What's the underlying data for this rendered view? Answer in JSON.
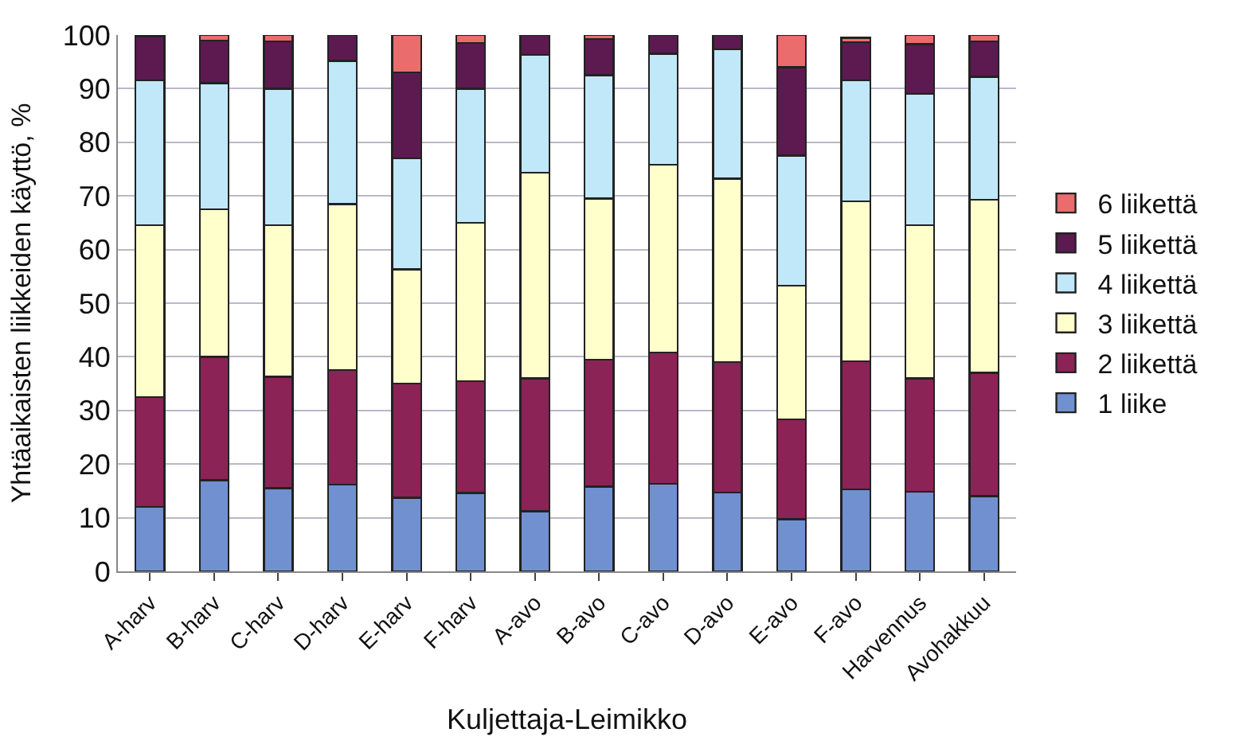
{
  "chart_data": {
    "type": "bar",
    "stacked": true,
    "xlabel": "Kuljettaja-Leimikko",
    "ylabel": "Yhtäaikaisten liikkeiden käyttö, %",
    "categories": [
      "A-harv",
      "B-harv",
      "C-harv",
      "D-harv",
      "E-harv",
      "F-harv",
      "A-avo",
      "B-avo",
      "C-avo",
      "D-avo",
      "E-avo",
      "F-avo",
      "Harvennus",
      "Avohakkuu"
    ],
    "series": [
      {
        "name": "1 liike",
        "color": "#7090d0",
        "values": [
          12,
          17,
          15.5,
          16.2,
          13.7,
          14.6,
          11.2,
          15.8,
          16.3,
          14.7,
          9.7,
          15.3,
          14.8,
          14
        ]
      },
      {
        "name": "2 liikettä",
        "color": "#8b2356",
        "values": [
          20.5,
          23,
          20.8,
          21.3,
          21.3,
          20.9,
          24.8,
          23.7,
          24.5,
          24.3,
          18.6,
          23.9,
          21.2,
          23
        ]
      },
      {
        "name": "3 liikettä",
        "color": "#ffffcc",
        "values": [
          32,
          27.5,
          28.2,
          31,
          21.3,
          29.5,
          38.3,
          30,
          35,
          34.2,
          25,
          29.8,
          28.5,
          32.3
        ]
      },
      {
        "name": "4 liikettä",
        "color": "#c0e8f8",
        "values": [
          27,
          23.5,
          25.5,
          26.7,
          20.7,
          25,
          22,
          23,
          20.7,
          24.1,
          24.2,
          22.5,
          24.5,
          22.9
        ]
      },
      {
        "name": "5 liikettä",
        "color": "#5c1a50",
        "values": [
          8.3,
          8,
          8.8,
          4.8,
          16,
          8.5,
          3.7,
          6.8,
          3.5,
          2.7,
          16.5,
          7.2,
          9.3,
          6.6
        ]
      },
      {
        "name": "6 liikettä",
        "color": "#ea6c6c",
        "values": [
          0.2,
          1,
          1.2,
          null,
          7,
          1.5,
          null,
          0.7,
          null,
          null,
          6,
          0.8,
          1.7,
          1.2
        ]
      }
    ],
    "ylim": [
      0,
      100
    ],
    "yticks": [
      0,
      10,
      20,
      30,
      40,
      50,
      60,
      70,
      80,
      90,
      100
    ],
    "grid": "y",
    "legend": "right"
  }
}
